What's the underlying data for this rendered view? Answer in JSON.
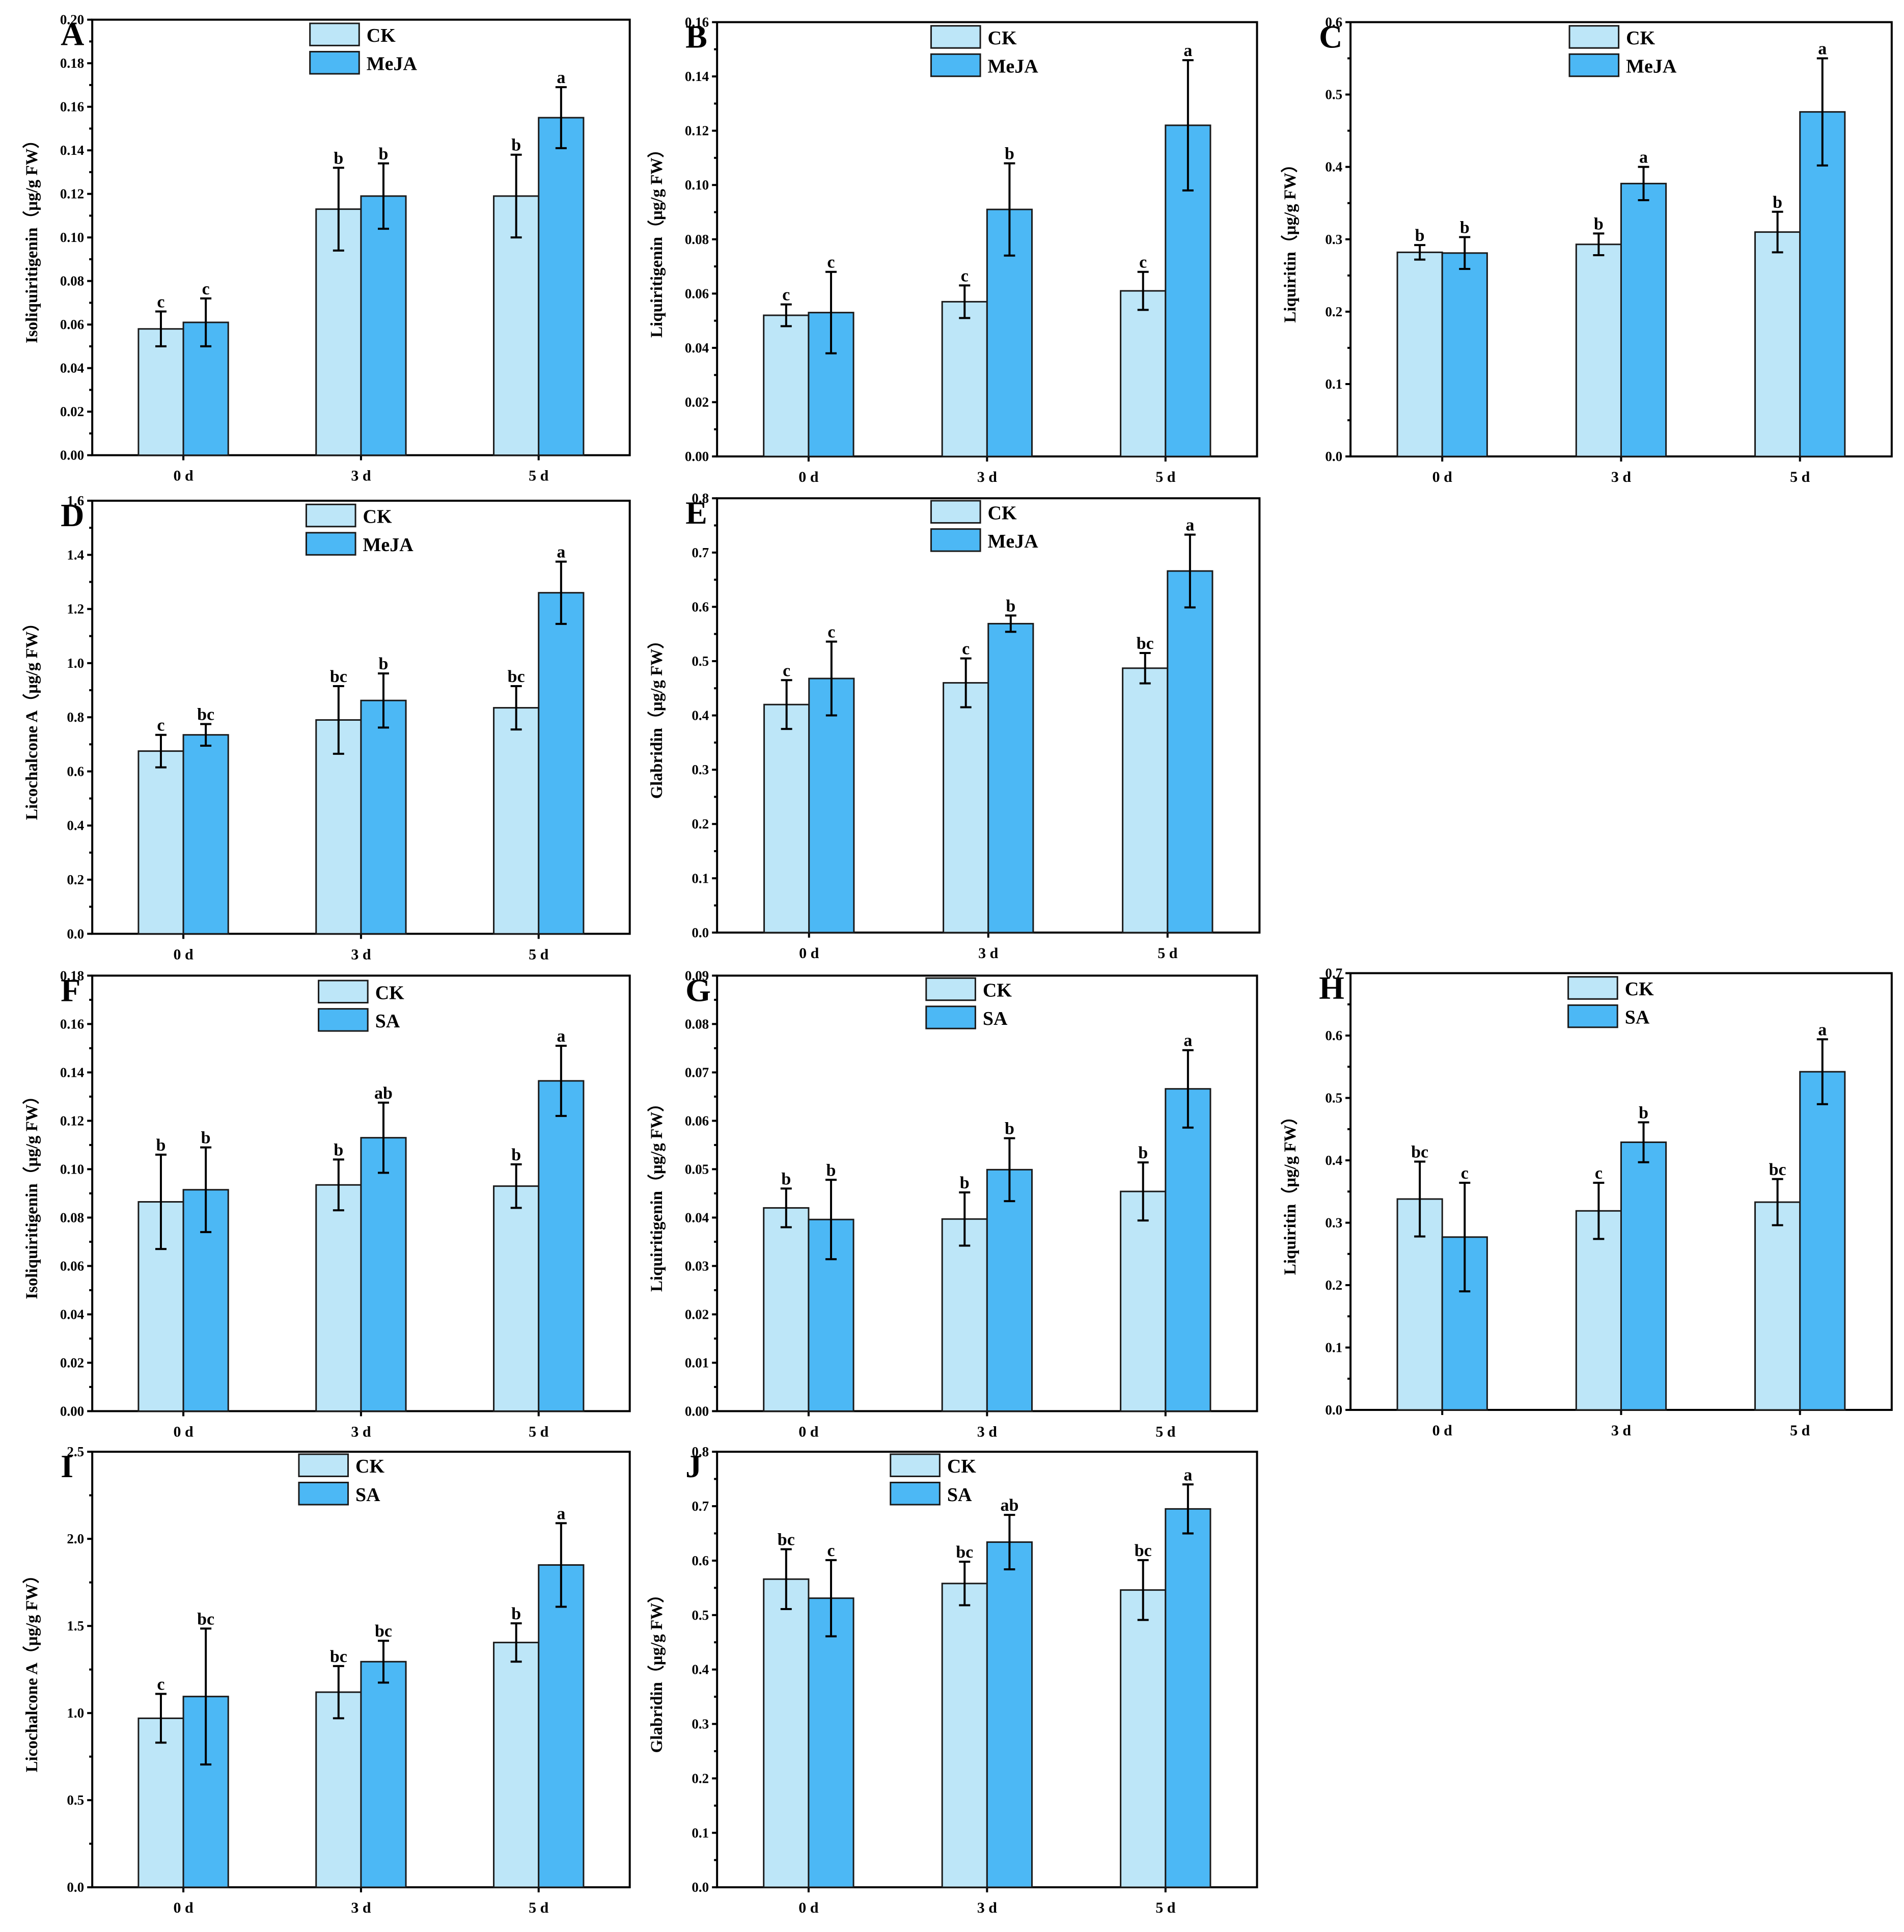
{
  "colors": {
    "ck": "#bde6f8",
    "treat": "#4cb8f5",
    "axis": "#000000"
  },
  "chart_data": [
    {
      "type": "bar",
      "panel": "A",
      "ylabel": "Isoliquiritigenin（μg/g FW）",
      "categories": [
        "0 d",
        "3 d",
        "5 d"
      ],
      "ylim": [
        0,
        0.2
      ],
      "ystep": 0.02,
      "decimals": 2,
      "series": [
        {
          "name": "CK",
          "values": [
            0.058,
            0.113,
            0.119
          ],
          "errors": [
            0.008,
            0.019,
            0.019
          ],
          "labels": [
            "c",
            "b",
            "b"
          ]
        },
        {
          "name": "MeJA",
          "values": [
            0.061,
            0.119,
            0.155
          ],
          "errors": [
            0.011,
            0.015,
            0.014
          ],
          "labels": [
            "c",
            "b",
            "a"
          ]
        }
      ]
    },
    {
      "type": "bar",
      "panel": "B",
      "ylabel": "Liquiritigenin（μg/g FW）",
      "categories": [
        "0 d",
        "3 d",
        "5 d"
      ],
      "ylim": [
        0,
        0.16
      ],
      "ystep": 0.02,
      "decimals": 2,
      "series": [
        {
          "name": "CK",
          "values": [
            0.052,
            0.057,
            0.061
          ],
          "errors": [
            0.004,
            0.006,
            0.007
          ],
          "labels": [
            "c",
            "c",
            "c"
          ]
        },
        {
          "name": "MeJA",
          "values": [
            0.053,
            0.091,
            0.122
          ],
          "errors": [
            0.015,
            0.017,
            0.024
          ],
          "labels": [
            "c",
            "b",
            "a"
          ]
        }
      ]
    },
    {
      "type": "bar",
      "panel": "C",
      "ylabel": "Liquiritin（μg/g FW）",
      "categories": [
        "0 d",
        "3 d",
        "5 d"
      ],
      "ylim": [
        0,
        0.6
      ],
      "ystep": 0.1,
      "decimals": 1,
      "series": [
        {
          "name": "CK",
          "values": [
            0.282,
            0.293,
            0.31
          ],
          "errors": [
            0.01,
            0.015,
            0.028
          ],
          "labels": [
            "b",
            "b",
            "b"
          ]
        },
        {
          "name": "MeJA",
          "values": [
            0.281,
            0.377,
            0.476
          ],
          "errors": [
            0.022,
            0.023,
            0.074
          ],
          "labels": [
            "b",
            "a",
            "a"
          ]
        }
      ]
    },
    {
      "type": "bar",
      "panel": "D",
      "ylabel": "Licochalcone A（μg/g FW）",
      "categories": [
        "0 d",
        "3 d",
        "5 d"
      ],
      "ylim": [
        0,
        1.6
      ],
      "ystep": 0.2,
      "decimals": 1,
      "series": [
        {
          "name": "CK",
          "values": [
            0.675,
            0.79,
            0.835
          ],
          "errors": [
            0.06,
            0.125,
            0.08
          ],
          "labels": [
            "c",
            "bc",
            "bc"
          ]
        },
        {
          "name": "MeJA",
          "values": [
            0.735,
            0.862,
            1.26
          ],
          "errors": [
            0.04,
            0.1,
            0.115
          ],
          "labels": [
            "bc",
            "b",
            "a"
          ]
        }
      ]
    },
    {
      "type": "bar",
      "panel": "E",
      "ylabel": "Glabridin（μg/g FW）",
      "categories": [
        "0 d",
        "3 d",
        "5 d"
      ],
      "ylim": [
        0,
        0.8
      ],
      "ystep": 0.1,
      "decimals": 1,
      "series": [
        {
          "name": "CK",
          "values": [
            0.42,
            0.46,
            0.487
          ],
          "errors": [
            0.045,
            0.045,
            0.028
          ],
          "labels": [
            "c",
            "c",
            "bc"
          ]
        },
        {
          "name": "MeJA",
          "values": [
            0.468,
            0.569,
            0.666
          ],
          "errors": [
            0.068,
            0.015,
            0.067
          ],
          "labels": [
            "c",
            "b",
            "a"
          ]
        }
      ]
    },
    {
      "type": "bar",
      "panel": "F",
      "ylabel": "Isoliquiritigenin（μg/g FW）",
      "categories": [
        "0 d",
        "3 d",
        "5 d"
      ],
      "ylim": [
        0,
        0.18
      ],
      "ystep": 0.02,
      "decimals": 2,
      "series": [
        {
          "name": "CK",
          "values": [
            0.0865,
            0.0935,
            0.093
          ],
          "errors": [
            0.0195,
            0.0105,
            0.009
          ],
          "labels": [
            "b",
            "b",
            "b"
          ]
        },
        {
          "name": "SA",
          "values": [
            0.0915,
            0.113,
            0.1365
          ],
          "errors": [
            0.0175,
            0.0145,
            0.0145
          ],
          "labels": [
            "b",
            "ab",
            "a"
          ]
        }
      ]
    },
    {
      "type": "bar",
      "panel": "G",
      "ylabel": "Liquiritigenin（μg/g FW）",
      "categories": [
        "0 d",
        "3 d",
        "5 d"
      ],
      "ylim": [
        0,
        0.09
      ],
      "ystep": 0.01,
      "decimals": 2,
      "series": [
        {
          "name": "CK",
          "values": [
            0.042,
            0.0397,
            0.0454
          ],
          "errors": [
            0.004,
            0.0055,
            0.006
          ],
          "labels": [
            "b",
            "b",
            "b"
          ]
        },
        {
          "name": "SA",
          "values": [
            0.0396,
            0.0499,
            0.0666
          ],
          "errors": [
            0.0082,
            0.0065,
            0.008
          ],
          "labels": [
            "b",
            "b",
            "a"
          ]
        }
      ]
    },
    {
      "type": "bar",
      "panel": "H",
      "ylabel": "Liquiritin（μg/g FW）",
      "categories": [
        "0 d",
        "3 d",
        "5 d"
      ],
      "ylim": [
        0,
        0.7
      ],
      "ystep": 0.1,
      "decimals": 1,
      "series": [
        {
          "name": "CK",
          "values": [
            0.338,
            0.319,
            0.333
          ],
          "errors": [
            0.06,
            0.045,
            0.037
          ],
          "labels": [
            "bc",
            "c",
            "bc"
          ]
        },
        {
          "name": "SA",
          "values": [
            0.277,
            0.429,
            0.542
          ],
          "errors": [
            0.087,
            0.032,
            0.052
          ],
          "labels": [
            "c",
            "b",
            "a"
          ]
        }
      ]
    },
    {
      "type": "bar",
      "panel": "I",
      "ylabel": "Licochalcone A（μg/g FW）",
      "categories": [
        "0 d",
        "3 d",
        "5 d"
      ],
      "ylim": [
        0,
        2.5
      ],
      "ystep": 0.5,
      "decimals": 1,
      "series": [
        {
          "name": "CK",
          "values": [
            0.97,
            1.12,
            1.405
          ],
          "errors": [
            0.14,
            0.15,
            0.11
          ],
          "labels": [
            "c",
            "bc",
            "b"
          ]
        },
        {
          "name": "SA",
          "values": [
            1.095,
            1.295,
            1.85
          ],
          "errors": [
            0.39,
            0.12,
            0.24
          ],
          "labels": [
            "bc",
            "bc",
            "a"
          ]
        }
      ]
    },
    {
      "type": "bar",
      "panel": "J",
      "ylabel": "Glabridin（μg/g FW）",
      "categories": [
        "0 d",
        "3 d",
        "5 d"
      ],
      "ylim": [
        0,
        0.8
      ],
      "ystep": 0.1,
      "decimals": 1,
      "series": [
        {
          "name": "CK",
          "values": [
            0.566,
            0.558,
            0.546
          ],
          "errors": [
            0.055,
            0.04,
            0.055
          ],
          "labels": [
            "bc",
            "bc",
            "bc"
          ]
        },
        {
          "name": "SA",
          "values": [
            0.531,
            0.634,
            0.695
          ],
          "errors": [
            0.07,
            0.05,
            0.045
          ],
          "labels": [
            "c",
            "ab",
            "a"
          ]
        }
      ]
    }
  ]
}
